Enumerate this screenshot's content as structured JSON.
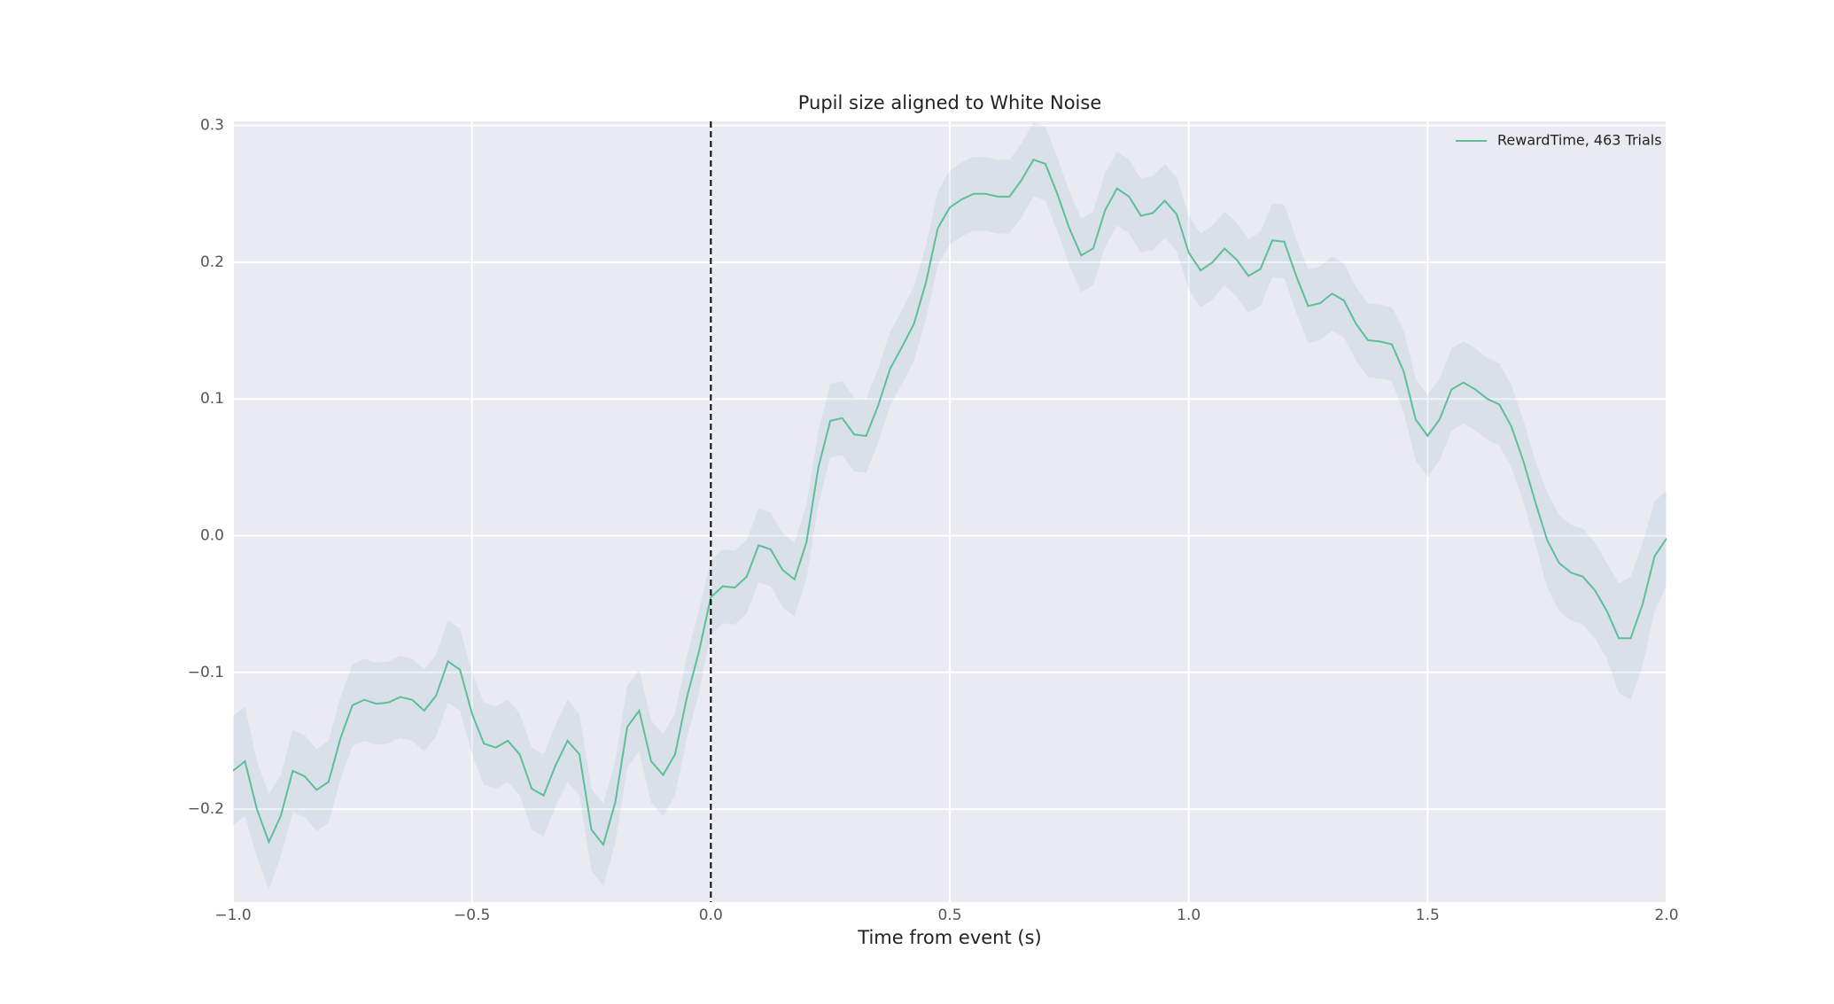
{
  "chart_data": {
    "type": "line",
    "title": "Pupil size aligned to White Noise",
    "x_label": "Time from event (s)",
    "x": [
      -1.0,
      -0.975,
      -0.95,
      -0.925,
      -0.9,
      -0.875,
      -0.85,
      -0.825,
      -0.8,
      -0.775,
      -0.75,
      -0.725,
      -0.7,
      -0.675,
      -0.65,
      -0.625,
      -0.6,
      -0.575,
      -0.55,
      -0.525,
      -0.5,
      -0.475,
      -0.45,
      -0.425,
      -0.4,
      -0.375,
      -0.35,
      -0.325,
      -0.3,
      -0.275,
      -0.25,
      -0.225,
      -0.2,
      -0.175,
      -0.15,
      -0.125,
      -0.1,
      -0.075,
      -0.05,
      -0.025,
      0.0,
      0.025,
      0.05,
      0.075,
      0.1,
      0.125,
      0.15,
      0.175,
      0.2,
      0.225,
      0.25,
      0.275,
      0.3,
      0.325,
      0.35,
      0.375,
      0.4,
      0.425,
      0.45,
      0.475,
      0.5,
      0.525,
      0.55,
      0.575,
      0.6,
      0.625,
      0.65,
      0.675,
      0.7,
      0.725,
      0.75,
      0.775,
      0.8,
      0.825,
      0.85,
      0.875,
      0.9,
      0.925,
      0.95,
      0.975,
      1.0,
      1.025,
      1.05,
      1.075,
      1.1,
      1.125,
      1.15,
      1.175,
      1.2,
      1.225,
      1.25,
      1.275,
      1.3,
      1.325,
      1.35,
      1.375,
      1.4,
      1.425,
      1.45,
      1.475,
      1.5,
      1.525,
      1.55,
      1.575,
      1.6,
      1.625,
      1.65,
      1.675,
      1.7,
      1.725,
      1.75,
      1.775,
      1.8,
      1.825,
      1.85,
      1.875,
      1.9,
      1.925,
      1.95,
      1.975,
      2.0
    ],
    "series": [
      {
        "name": "RewardTime, 463 Trials",
        "color": "#5cbf95",
        "band_color": "#6f9fae",
        "values": [
          -0.172,
          -0.165,
          -0.2,
          -0.224,
          -0.205,
          -0.172,
          -0.176,
          -0.186,
          -0.18,
          -0.148,
          -0.124,
          -0.12,
          -0.123,
          -0.122,
          -0.118,
          -0.12,
          -0.128,
          -0.117,
          -0.092,
          -0.098,
          -0.13,
          -0.152,
          -0.155,
          -0.15,
          -0.16,
          -0.185,
          -0.19,
          -0.168,
          -0.15,
          -0.16,
          -0.215,
          -0.226,
          -0.195,
          -0.14,
          -0.128,
          -0.165,
          -0.175,
          -0.16,
          -0.118,
          -0.085,
          -0.045,
          -0.037,
          -0.038,
          -0.03,
          -0.007,
          -0.01,
          -0.025,
          -0.032,
          -0.005,
          0.05,
          0.084,
          0.086,
          0.074,
          0.073,
          0.095,
          0.122,
          0.138,
          0.155,
          0.185,
          0.225,
          0.24,
          0.246,
          0.25,
          0.25,
          0.248,
          0.248,
          0.26,
          0.275,
          0.272,
          0.25,
          0.225,
          0.205,
          0.21,
          0.238,
          0.254,
          0.248,
          0.234,
          0.236,
          0.245,
          0.235,
          0.207,
          0.194,
          0.2,
          0.21,
          0.202,
          0.19,
          0.195,
          0.216,
          0.215,
          0.19,
          0.168,
          0.17,
          0.177,
          0.172,
          0.155,
          0.143,
          0.142,
          0.14,
          0.12,
          0.085,
          0.073,
          0.085,
          0.107,
          0.112,
          0.107,
          0.1,
          0.096,
          0.08,
          0.055,
          0.025,
          -0.003,
          -0.02,
          -0.027,
          -0.03,
          -0.04,
          -0.055,
          -0.075,
          -0.075,
          -0.05,
          -0.015,
          -0.002
        ],
        "errors": [
          0.04,
          0.04,
          0.035,
          0.035,
          0.03,
          0.03,
          0.03,
          0.03,
          0.03,
          0.03,
          0.03,
          0.03,
          0.03,
          0.03,
          0.03,
          0.03,
          0.03,
          0.03,
          0.03,
          0.03,
          0.03,
          0.03,
          0.03,
          0.03,
          0.03,
          0.03,
          0.03,
          0.03,
          0.03,
          0.03,
          0.03,
          0.03,
          0.03,
          0.03,
          0.03,
          0.03,
          0.03,
          0.03,
          0.03,
          0.03,
          0.027,
          0.027,
          0.027,
          0.027,
          0.027,
          0.027,
          0.027,
          0.027,
          0.027,
          0.027,
          0.027,
          0.027,
          0.027,
          0.027,
          0.027,
          0.027,
          0.027,
          0.027,
          0.027,
          0.027,
          0.027,
          0.027,
          0.027,
          0.027,
          0.027,
          0.027,
          0.027,
          0.027,
          0.027,
          0.027,
          0.027,
          0.027,
          0.027,
          0.027,
          0.027,
          0.027,
          0.027,
          0.027,
          0.027,
          0.027,
          0.027,
          0.027,
          0.027,
          0.027,
          0.027,
          0.027,
          0.027,
          0.027,
          0.027,
          0.027,
          0.027,
          0.027,
          0.027,
          0.027,
          0.027,
          0.027,
          0.027,
          0.027,
          0.03,
          0.03,
          0.03,
          0.03,
          0.03,
          0.03,
          0.03,
          0.03,
          0.03,
          0.03,
          0.03,
          0.03,
          0.035,
          0.035,
          0.035,
          0.035,
          0.035,
          0.035,
          0.04,
          0.045,
          0.045,
          0.04,
          0.035
        ]
      }
    ],
    "xlim": [
      -1.0,
      2.0
    ],
    "xticks": [
      {
        "value": -1.0,
        "label": "−1.0"
      },
      {
        "value": -0.5,
        "label": "−0.5"
      },
      {
        "value": 0.0,
        "label": "0.0"
      },
      0.5,
      {
        "value": 1.0,
        "label": "1.0"
      },
      1.5,
      {
        "value": 2.0,
        "label": "2.0"
      }
    ],
    "ylim": [
      -0.268,
      0.303
    ],
    "yticks": [
      {
        "value": -0.2,
        "label": "−0.2"
      },
      {
        "value": -0.1,
        "label": "−0.1"
      },
      {
        "value": 0.0,
        "label": "0.0"
      },
      0.1,
      0.2,
      0.3
    ],
    "vline": 0.0,
    "grid": true,
    "legend": "upper right"
  }
}
